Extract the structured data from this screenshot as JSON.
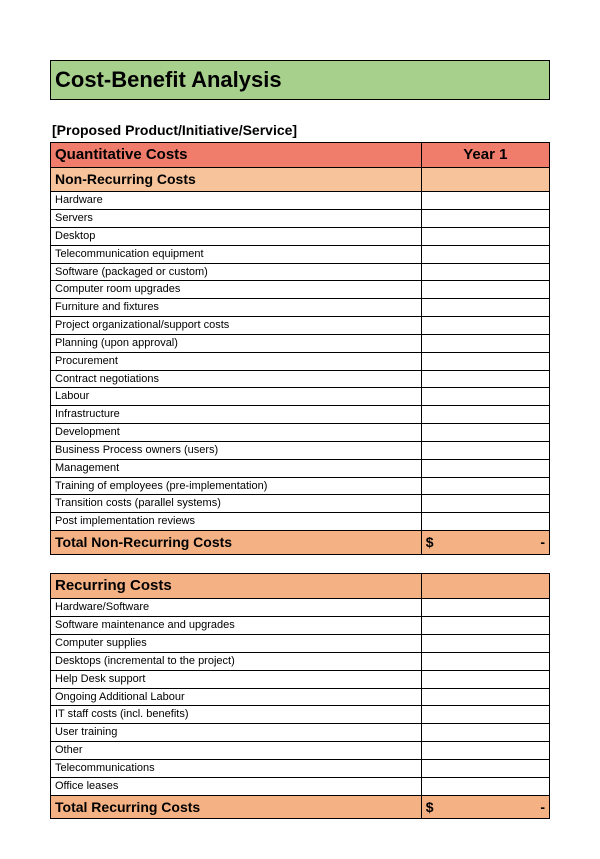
{
  "colors": {
    "title_bg": "#a8d08d",
    "section_bg": "#f07c6c",
    "subsection_bg": "#f6c39a",
    "total_bg": "#f4b183",
    "row_bg": "#ffffff",
    "border": "#000000",
    "text": "#000000"
  },
  "title": "Cost-Benefit Analysis",
  "subtitle": "[Proposed Product/Initiative/Service]",
  "section1": {
    "header_label": "Quantitative Costs",
    "header_year": "Year 1",
    "subsection_label": "Non-Recurring Costs",
    "items": [
      "Hardware",
      "Servers",
      "Desktop",
      "Telecommunication equipment",
      "Software (packaged or custom)",
      "Computer room upgrades",
      "Furniture and fixtures",
      "Project organizational/support costs",
      "Planning (upon approval)",
      "Procurement",
      "Contract negotiations",
      "Labour",
      "Infrastructure",
      "Development",
      "Business Process owners (users)",
      "Management",
      "Training of employees (pre-implementation)",
      "Transition costs (parallel systems)",
      "Post implementation reviews"
    ],
    "total_label": "Total Non-Recurring Costs",
    "total_currency": "$",
    "total_value": "-"
  },
  "section2": {
    "subsection_label": "Recurring Costs",
    "items": [
      "Hardware/Software",
      "Software maintenance and upgrades",
      "Computer supplies",
      "Desktops (incremental to the project)",
      "Help Desk support",
      "Ongoing Additional Labour",
      "IT staff costs (incl. benefits)",
      "User training",
      "Other",
      "Telecommunications",
      "Office leases"
    ],
    "total_label": "Total Recurring Costs",
    "total_currency": "$",
    "total_value": "-"
  }
}
